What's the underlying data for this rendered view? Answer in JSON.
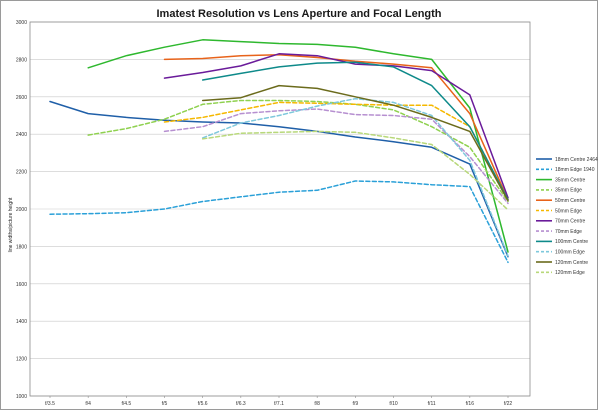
{
  "chart_data": {
    "type": "line",
    "title": "Imatest Resolution vs Lens Aperture and Focal Length",
    "xlabel": "",
    "ylabel": "line widths/picture height",
    "categories": [
      "f/3.5",
      "f/4",
      "f/4.5",
      "f/5",
      "f/5.6",
      "f/6.3",
      "f/7.1",
      "f/8",
      "f/9",
      "f/10",
      "f/11",
      "f/16",
      "f/22"
    ],
    "ylim": [
      1000,
      3000
    ],
    "y_ticks": [
      1000,
      1200,
      1400,
      1600,
      1800,
      2000,
      2200,
      2400,
      2600,
      2800,
      3000
    ],
    "grid": "horizontal",
    "legend": "right",
    "series": [
      {
        "name": "18mm Centre 2464",
        "color": "#1f5fa8",
        "dash": false,
        "values": [
          2575,
          2510,
          2490,
          2475,
          2465,
          2460,
          2440,
          2415,
          2385,
          2360,
          2330,
          2240,
          1745
        ]
      },
      {
        "name": "18mm Edge 1940",
        "color": "#2aa0d8",
        "dash": true,
        "values": [
          1972,
          1975,
          1980,
          2000,
          2040,
          2065,
          2090,
          2100,
          2150,
          2145,
          2130,
          2120,
          1715
        ]
      },
      {
        "name": "35mm Centre",
        "color": "#2eb82e",
        "dash": false,
        "values": [
          null,
          2755,
          2820,
          2865,
          2905,
          2895,
          2885,
          2880,
          2865,
          2830,
          2800,
          2540,
          1770
        ]
      },
      {
        "name": "35mm Edge",
        "color": "#8fd14f",
        "dash": true,
        "values": [
          null,
          2395,
          2430,
          2480,
          2560,
          2580,
          2580,
          2575,
          2560,
          2530,
          2440,
          2330,
          2040
        ]
      },
      {
        "name": "50mm Centre",
        "color": "#e8631a",
        "dash": false,
        "values": [
          null,
          null,
          null,
          2800,
          2805,
          2820,
          2825,
          2810,
          2790,
          2775,
          2755,
          2510,
          2050
        ]
      },
      {
        "name": "50mm Edge",
        "color": "#f5b800",
        "dash": true,
        "values": [
          null,
          null,
          null,
          2465,
          2490,
          2530,
          2570,
          2565,
          2560,
          2555,
          2555,
          2440,
          2050
        ]
      },
      {
        "name": "70mm Centre",
        "color": "#6a1b9a",
        "dash": false,
        "values": [
          null,
          null,
          null,
          2700,
          2730,
          2765,
          2830,
          2820,
          2775,
          2765,
          2740,
          2610,
          2060
        ]
      },
      {
        "name": "70mm Edge",
        "color": "#b68fd0",
        "dash": true,
        "values": [
          null,
          null,
          null,
          2415,
          2440,
          2510,
          2525,
          2535,
          2505,
          2500,
          2480,
          2280,
          2030
        ]
      },
      {
        "name": "100mm Centre",
        "color": "#0e8a8a",
        "dash": false,
        "values": [
          null,
          null,
          null,
          null,
          2690,
          2725,
          2760,
          2780,
          2785,
          2760,
          2660,
          2440,
          2050
        ]
      },
      {
        "name": "100mm Edge",
        "color": "#7ec8dc",
        "dash": true,
        "values": [
          null,
          null,
          null,
          null,
          2380,
          2460,
          2500,
          2550,
          2590,
          2570,
          2500,
          2260,
          1750
        ]
      },
      {
        "name": "120mm Centre",
        "color": "#6b6b1c",
        "dash": false,
        "values": [
          null,
          null,
          null,
          null,
          2580,
          2595,
          2660,
          2645,
          2600,
          2555,
          2490,
          2415,
          2045
        ]
      },
      {
        "name": "120mm Edge",
        "color": "#b8d87a",
        "dash": true,
        "values": [
          null,
          null,
          null,
          null,
          2375,
          2405,
          2410,
          2415,
          2410,
          2380,
          2345,
          2185,
          1995
        ]
      }
    ]
  }
}
